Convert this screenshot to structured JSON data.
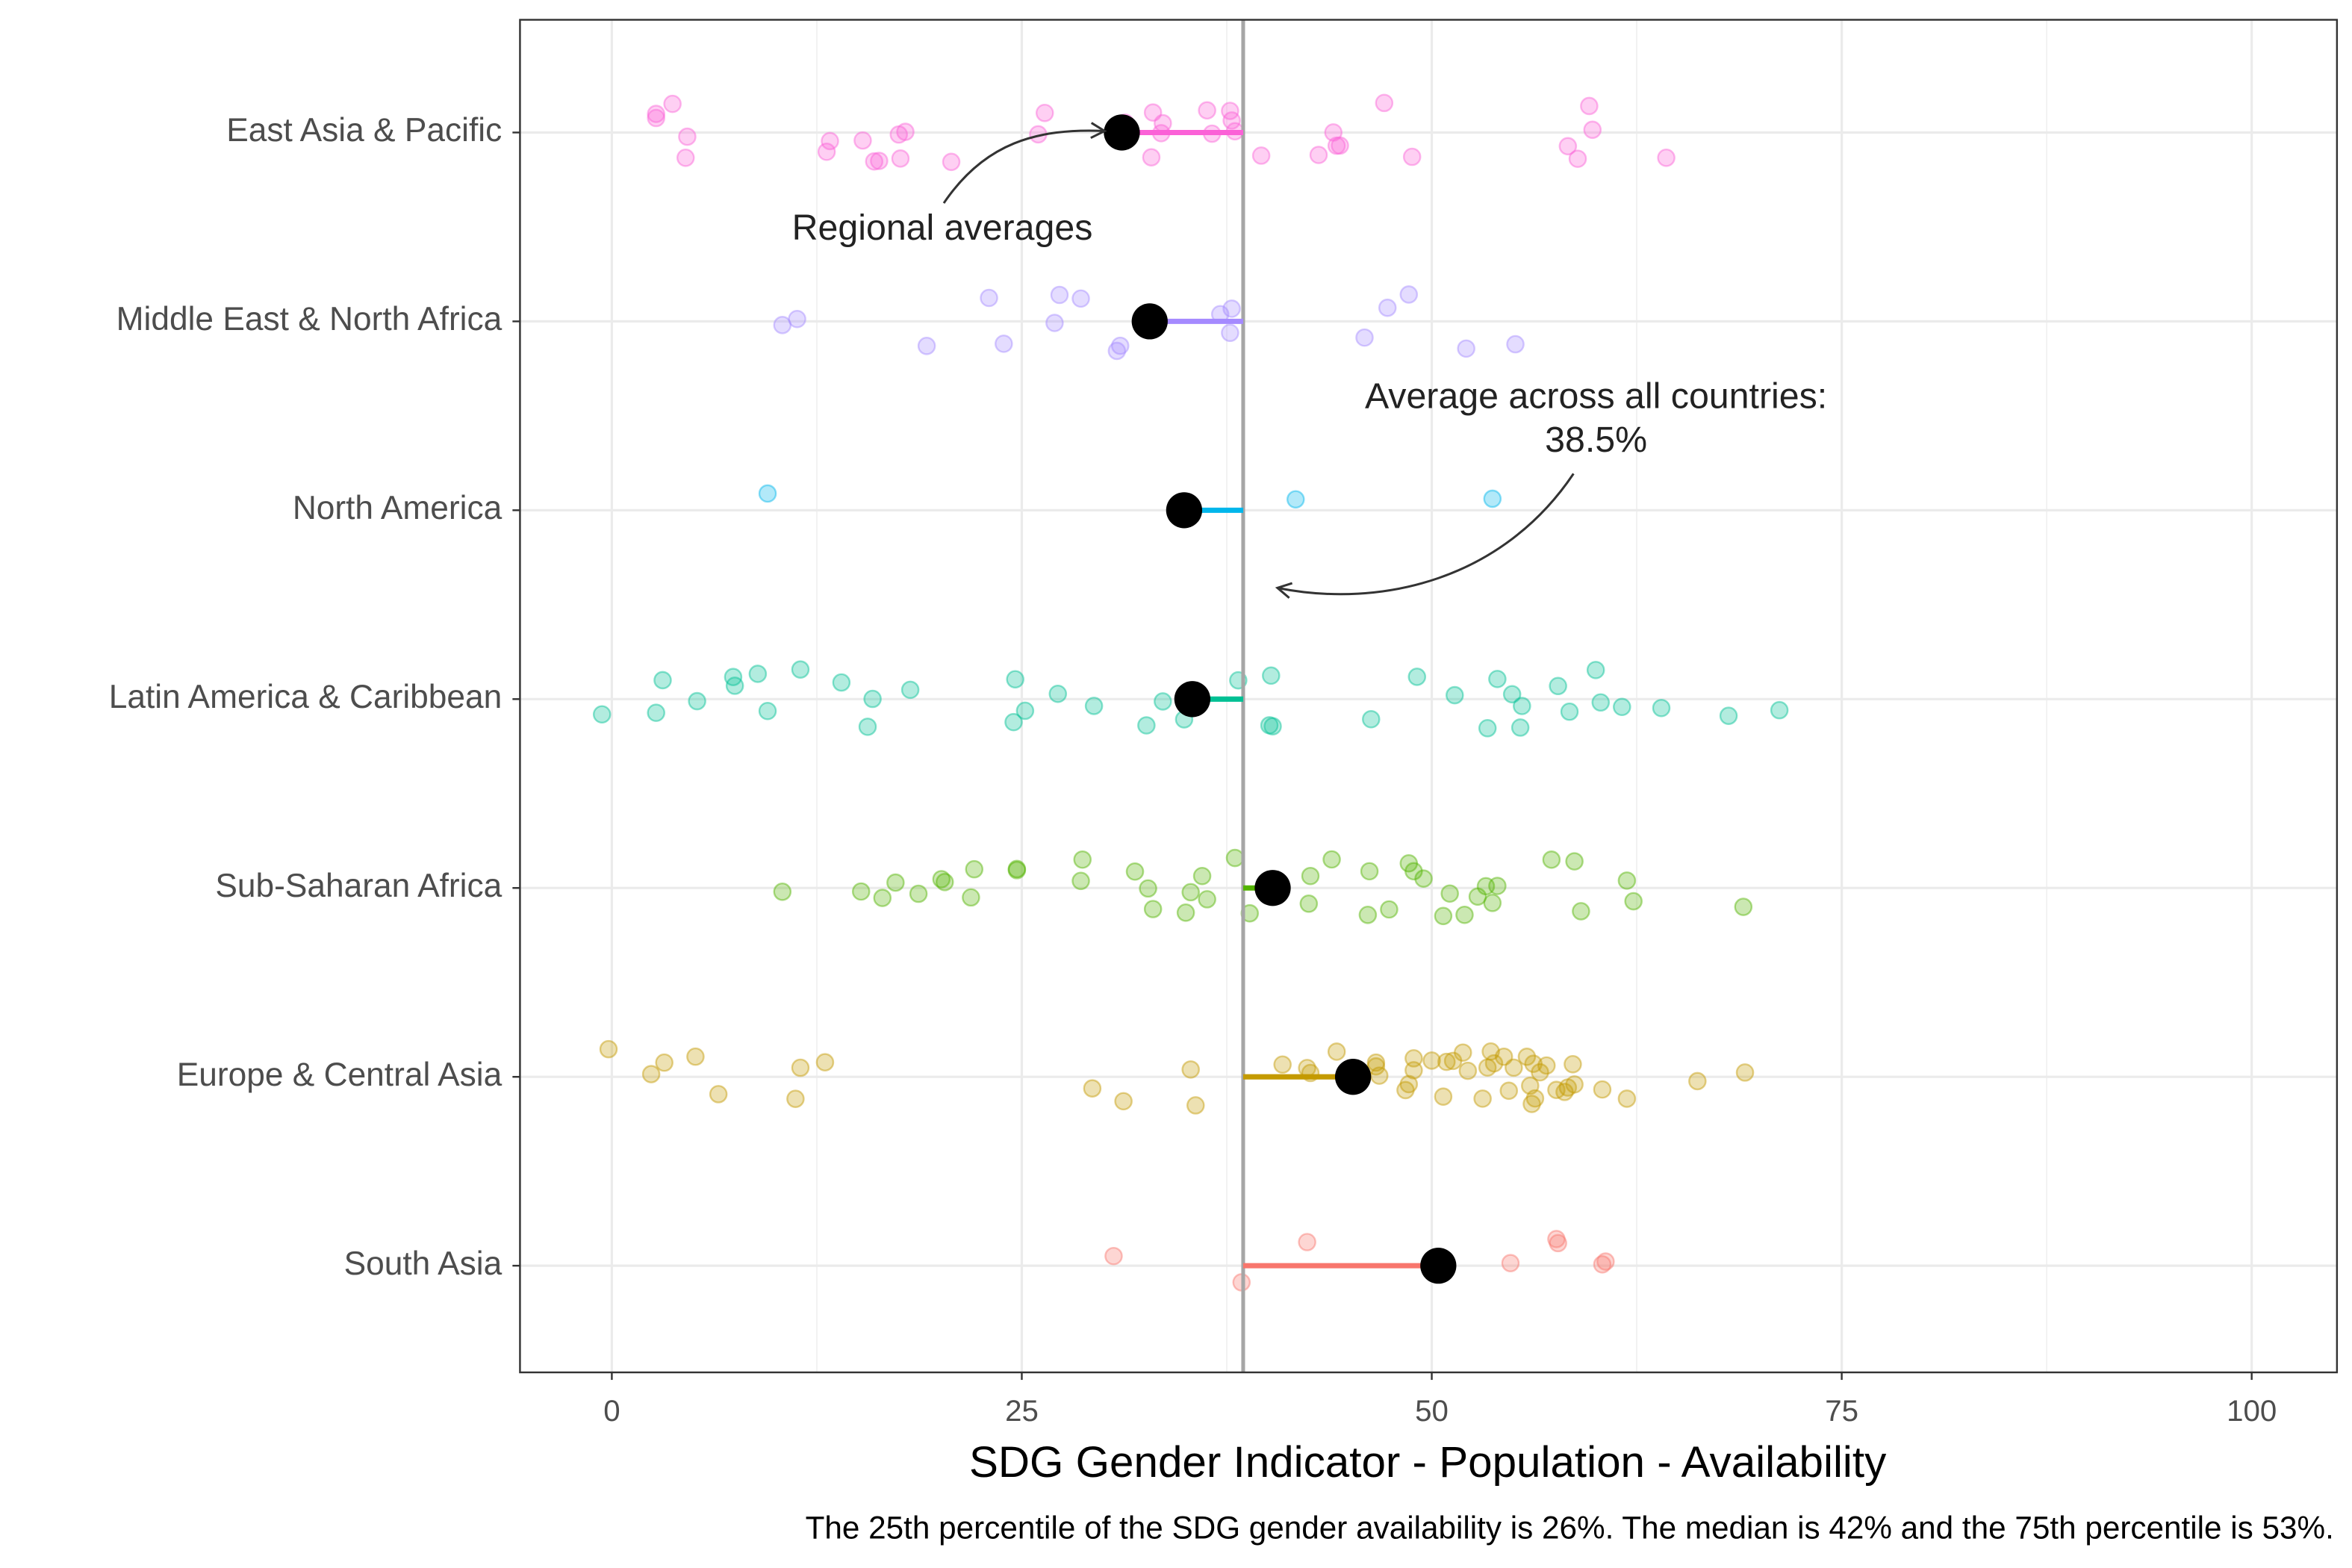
{
  "chart_data": {
    "type": "jitter-means",
    "xlabel": "SDG Gender Indicator - Population - Availability",
    "caption": "The 25th percentile of the SDG gender availability is 26%. The median is 42% and the 75th percentile is 53%.",
    "xlim": [
      -5.6,
      105.2
    ],
    "xticks": [
      0,
      25,
      50,
      75,
      100
    ],
    "grid": true,
    "reference_line": {
      "value": 38.5,
      "label": "38.5%",
      "color": "#a6a6a6"
    },
    "annotations": {
      "regional": "Regional averages",
      "overall": "Average across all countries:"
    },
    "mean_color": "#000000",
    "series": [
      {
        "name": "East Asia & Pacific",
        "color": "#FB61D7",
        "mean": 31.1,
        "values": [
          2.7,
          4.5,
          4.6,
          2.7,
          3.7,
          13.1,
          16.0,
          16.3,
          17.5,
          17.6,
          17.9,
          20.7,
          15.3,
          13.3,
          26.4,
          26.0,
          31.3,
          32.9,
          33.0,
          33.5,
          33.6,
          36.3,
          36.6,
          37.7,
          37.8,
          38.0,
          39.6,
          43.1,
          44.0,
          44.4,
          44.2,
          47.1,
          48.8,
          59.8,
          59.6,
          58.9,
          58.3,
          64.3
        ]
      },
      {
        "name": "Middle East & North Africa",
        "color": "#A58AFF",
        "mean": 32.8,
        "values": [
          11.3,
          10.4,
          19.2,
          23.0,
          23.9,
          27.0,
          27.3,
          28.6,
          30.8,
          31.0,
          37.1,
          37.7,
          37.8,
          45.9,
          47.3,
          48.6,
          52.1,
          55.1
        ]
      },
      {
        "name": "North America",
        "color": "#00B6EB",
        "mean": 34.9,
        "values": [
          9.5,
          41.7,
          53.7
        ]
      },
      {
        "name": "Latin America & Caribbean",
        "color": "#00C094",
        "mean": 35.4,
        "values": [
          -0.6,
          2.7,
          3.1,
          5.2,
          7.4,
          7.5,
          8.9,
          9.5,
          11.5,
          14.0,
          15.6,
          15.9,
          18.2,
          24.5,
          24.6,
          25.2,
          27.2,
          29.4,
          32.6,
          34.9,
          33.6,
          38.2,
          40.2,
          40.1,
          40.3,
          46.3,
          49.1,
          51.4,
          53.4,
          54.0,
          54.9,
          55.4,
          55.5,
          57.7,
          58.4,
          60.0,
          60.3,
          61.6,
          64.0,
          68.1,
          71.2
        ]
      },
      {
        "name": "Sub-Saharan Africa",
        "color": "#53B400",
        "mean": 40.3,
        "values": [
          10.4,
          15.2,
          16.5,
          17.3,
          18.7,
          20.1,
          20.3,
          21.9,
          22.1,
          24.7,
          24.7,
          28.7,
          28.6,
          31.9,
          32.7,
          33.0,
          35.0,
          35.3,
          36.0,
          36.3,
          38.0,
          38.9,
          40.6,
          42.5,
          42.6,
          43.9,
          46.1,
          46.2,
          47.4,
          48.6,
          48.9,
          49.5,
          50.7,
          51.1,
          52.0,
          52.8,
          53.3,
          53.7,
          54.0,
          57.3,
          58.7,
          59.1,
          61.9,
          62.3,
          69.0
        ]
      },
      {
        "name": "Europe & Central Asia",
        "color": "#C49A00",
        "mean": 45.2,
        "values": [
          -0.2,
          2.4,
          3.2,
          5.1,
          6.5,
          11.2,
          11.5,
          13.0,
          29.3,
          31.2,
          35.3,
          35.6,
          40.9,
          42.4,
          42.6,
          44.2,
          46.6,
          46.6,
          46.8,
          48.4,
          48.6,
          48.9,
          48.9,
          50.0,
          50.7,
          50.9,
          51.3,
          51.9,
          52.2,
          53.1,
          53.4,
          53.6,
          53.8,
          54.4,
          54.7,
          55.0,
          55.8,
          56.0,
          56.1,
          56.2,
          56.3,
          56.6,
          57.0,
          57.6,
          58.1,
          58.3,
          58.6,
          58.7,
          60.4,
          61.9,
          66.2,
          69.1
        ]
      },
      {
        "name": "South Asia",
        "color": "#F8766D",
        "mean": 50.4,
        "values": [
          30.6,
          38.4,
          42.4,
          54.8,
          57.6,
          57.7,
          60.6,
          60.4
        ]
      }
    ]
  }
}
